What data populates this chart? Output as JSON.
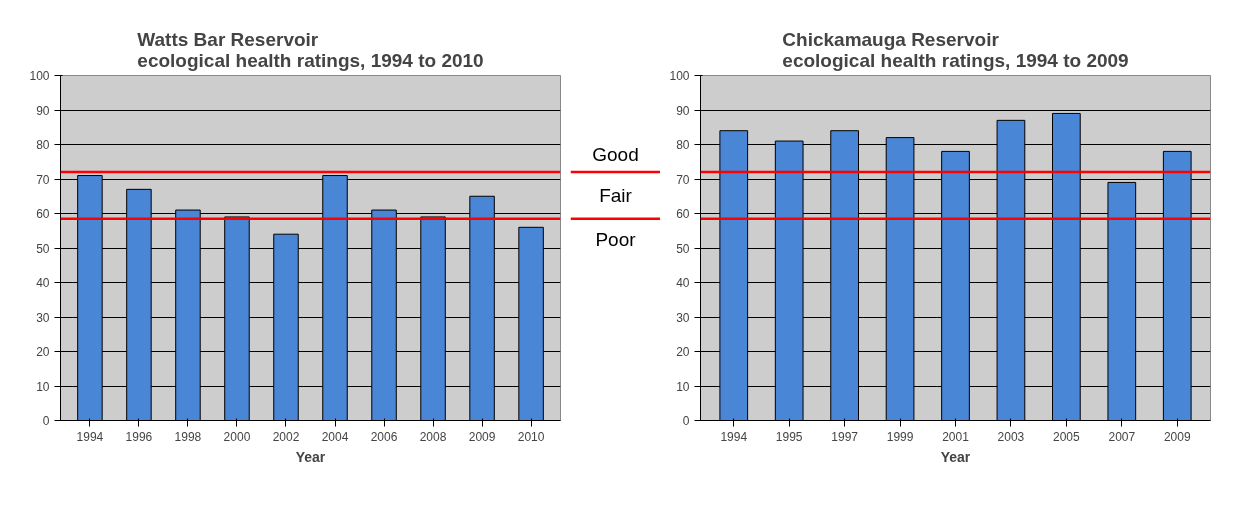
{
  "chart_data": [
    {
      "type": "bar",
      "title": "Watts Bar Reservoir\necological health ratings, 1994 to 2010",
      "xlabel": "Year",
      "categories": [
        "1994",
        "1996",
        "1998",
        "2000",
        "2002",
        "2004",
        "2006",
        "2008",
        "2009",
        "2010"
      ],
      "values": [
        71,
        67,
        61,
        59,
        54,
        71,
        61,
        59,
        65,
        56
      ],
      "color": "#4a86d6",
      "ylim": [
        0,
        100
      ],
      "yticks": [
        0,
        10,
        20,
        30,
        40,
        50,
        60,
        70,
        80,
        90,
        100
      ],
      "grid": "y",
      "ref_lines": [
        {
          "axis": "y",
          "value": 72,
          "color": "#ff0000"
        },
        {
          "axis": "y",
          "value": 58.5,
          "color": "#ff0000"
        }
      ],
      "annotations": [
        "Good",
        "Fair",
        "Poor"
      ]
    },
    {
      "type": "bar",
      "title": "Chickamauga Reservoir\necological health ratings, 1994 to 2009",
      "xlabel": "Year",
      "categories": [
        "1994",
        "1995",
        "1997",
        "1999",
        "2001",
        "2003",
        "2005",
        "2007",
        "2009"
      ],
      "values": [
        84,
        81,
        84,
        82,
        78,
        87,
        89,
        69,
        78
      ],
      "color": "#4a86d6",
      "ylim": [
        0,
        100
      ],
      "yticks": [
        0,
        10,
        20,
        30,
        40,
        50,
        60,
        70,
        80,
        90,
        100
      ],
      "grid": "y",
      "ref_lines": [
        {
          "axis": "y",
          "value": 72,
          "color": "#ff0000"
        },
        {
          "axis": "y",
          "value": 58.5,
          "color": "#ff0000"
        }
      ]
    }
  ]
}
